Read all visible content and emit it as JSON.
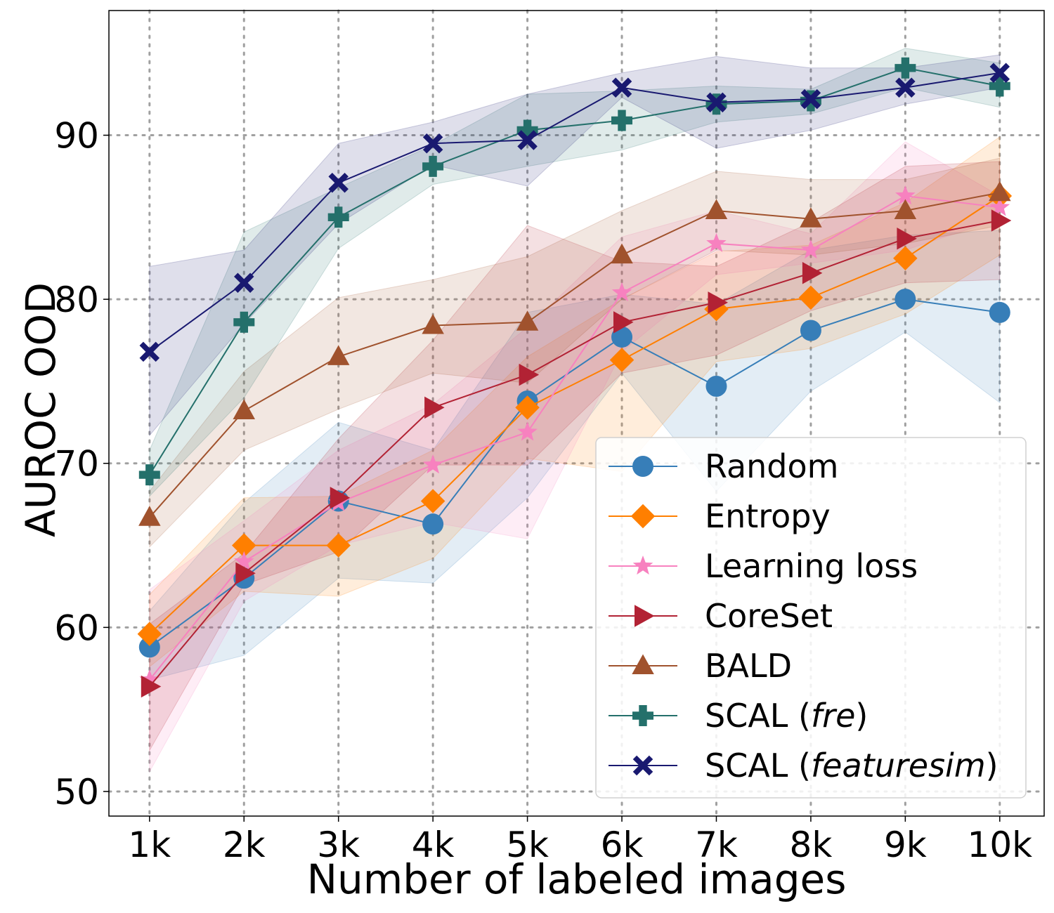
{
  "chart_data": {
    "type": "line",
    "xlabel": "Number of labeled images",
    "ylabel": "AUROC OOD",
    "categories": [
      "1k",
      "2k",
      "3k",
      "4k",
      "5k",
      "6k",
      "7k",
      "8k",
      "9k",
      "10k"
    ],
    "x": [
      1,
      2,
      3,
      4,
      5,
      6,
      7,
      8,
      9,
      10
    ],
    "xlim": [
      0.57,
      10.47
    ],
    "ylim": [
      48.5,
      97.6
    ],
    "yticks": [
      50,
      60,
      70,
      80,
      90
    ],
    "grid": true,
    "legend_position": "lower-right",
    "series": [
      {
        "name": "Random",
        "color": "#377eb8",
        "marker": "circle",
        "values": [
          58.8,
          63.0,
          67.7,
          66.3,
          73.8,
          77.7,
          74.7,
          78.1,
          80.0,
          79.2
        ],
        "lower": [
          56.8,
          58.3,
          63.0,
          62.7,
          67.9,
          75.5,
          68.3,
          74.4,
          78.0,
          73.7
        ],
        "upper": [
          61.0,
          67.6,
          72.5,
          70.8,
          79.2,
          80.3,
          79.7,
          83.0,
          83.9,
          84.2
        ]
      },
      {
        "name": "Entropy",
        "color": "#ff7f00",
        "marker": "diamond",
        "values": [
          59.6,
          65.0,
          65.0,
          67.7,
          73.4,
          76.3,
          79.4,
          80.1,
          82.5,
          86.3
        ],
        "lower": [
          57.6,
          62.2,
          61.9,
          64.2,
          70.3,
          69.5,
          76.2,
          77.0,
          79.1,
          82.7
        ],
        "upper": [
          62.0,
          67.9,
          68.0,
          70.8,
          76.5,
          80.0,
          82.9,
          83.3,
          85.9,
          89.9
        ]
      },
      {
        "name": "Learning loss",
        "color": "#f781bf",
        "marker": "star",
        "values": [
          56.8,
          64.0,
          67.6,
          69.9,
          71.9,
          80.4,
          83.4,
          83.0,
          86.3,
          85.6
        ],
        "lower": [
          51.2,
          61.6,
          65.0,
          66.4,
          65.4,
          76.8,
          81.5,
          82.2,
          83.0,
          84.9
        ],
        "upper": [
          62.3,
          66.5,
          70.8,
          73.6,
          78.3,
          83.8,
          85.4,
          84.0,
          89.6,
          86.3
        ]
      },
      {
        "name": "CoreSet",
        "color": "#b22234",
        "marker": "triangle-right",
        "values": [
          56.4,
          63.3,
          67.9,
          73.4,
          75.4,
          78.6,
          79.8,
          81.6,
          83.7,
          84.8
        ],
        "lower": [
          52.5,
          62.6,
          64.6,
          69.9,
          69.9,
          75.5,
          76.6,
          79.3,
          81.0,
          81.2
        ],
        "upper": [
          60.2,
          64.5,
          71.5,
          77.5,
          84.5,
          82.3,
          82.0,
          84.7,
          88.1,
          88.4
        ]
      },
      {
        "name": "BALD",
        "color": "#a0522d",
        "marker": "triangle-up",
        "values": [
          66.7,
          73.2,
          76.5,
          78.4,
          78.6,
          82.7,
          85.4,
          84.9,
          85.4,
          86.5
        ],
        "lower": [
          64.9,
          70.8,
          73.3,
          75.5,
          74.9,
          80.0,
          83.0,
          82.7,
          83.4,
          84.5
        ],
        "upper": [
          68.3,
          75.6,
          80.1,
          81.2,
          82.6,
          85.4,
          87.8,
          87.3,
          87.3,
          88.6
        ]
      },
      {
        "name": "SCAL (fre)",
        "name_prefix": "SCAL (",
        "name_italic": "fre",
        "name_suffix": ")",
        "color": "#24706b",
        "marker": "plus",
        "values": [
          69.3,
          78.6,
          85.0,
          88.1,
          90.3,
          90.9,
          91.9,
          92.1,
          94.1,
          93.0
        ],
        "lower": [
          68.0,
          74.0,
          83.1,
          87.0,
          88.1,
          89.1,
          90.8,
          91.3,
          92.9,
          91.7
        ],
        "upper": [
          70.8,
          84.1,
          86.8,
          89.4,
          92.5,
          92.7,
          93.0,
          92.8,
          95.3,
          94.4
        ]
      },
      {
        "name": "SCAL (featuresim)",
        "name_prefix": "SCAL (",
        "name_italic": "featuresim",
        "name_suffix": ")",
        "color": "#191970",
        "marker": "x",
        "values": [
          76.8,
          81.0,
          87.1,
          89.5,
          89.7,
          92.9,
          92.0,
          92.2,
          92.9,
          93.8
        ],
        "lower": [
          71.7,
          78.5,
          84.6,
          88.2,
          86.9,
          92.3,
          89.2,
          90.3,
          91.9,
          92.9
        ],
        "upper": [
          82.0,
          83.0,
          89.5,
          90.8,
          92.5,
          93.8,
          94.8,
          94.1,
          94.1,
          94.9
        ]
      }
    ]
  }
}
